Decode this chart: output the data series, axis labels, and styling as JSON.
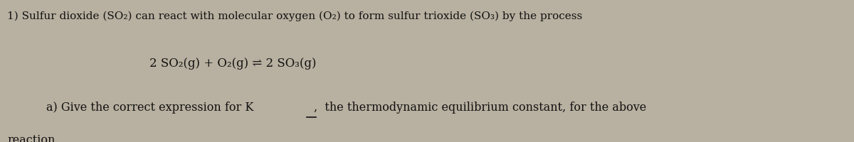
{
  "background_color": "#b8b0a0",
  "fig_width": 12.0,
  "fig_height": 2.01,
  "dpi": 100,
  "line1": "1) Sulfur dioxide (SO₂) can react with molecular oxygen (O₂) to form sulfur trioxide (SO₃) by the process",
  "line2": "2 SO₂(g) + O₂(g) ⇌ 2 SO₃(g)",
  "line3": "a) Give the correct expression for K,  the thermodynamic equilibrium constant, for the above",
  "line3_prefix": "a) Give the correct expression for K",
  "line3_suffix": ",  the thermodynamic equilibrium constant, for the above",
  "line4": "reaction.",
  "font_size_line1": 11.0,
  "font_size_line2": 12.0,
  "font_size_line3": 11.5,
  "font_size_line4": 11.5,
  "text_color": "#111111",
  "font_family": "DejaVu Serif"
}
